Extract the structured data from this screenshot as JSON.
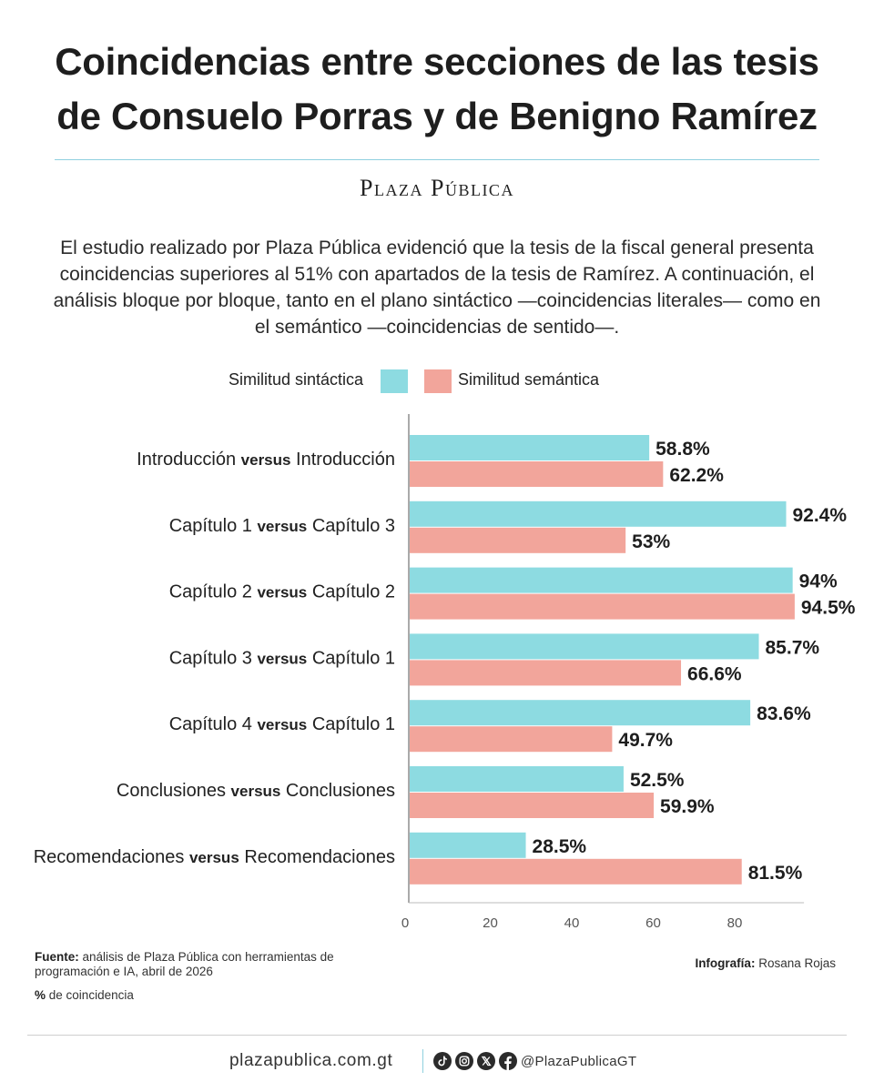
{
  "header": {
    "title_line1": "Coincidencias entre secciones de las tesis",
    "title_line2": "de Consuelo Porras y de Benigno Ramírez",
    "brand": "Plaza Pública"
  },
  "intro": "El estudio realizado por Plaza Pública evidenció que la tesis de la fiscal general presenta coincidencias superiores al 51% con apartados de la tesis de Ramírez. A continuación, el análisis bloque por bloque, tanto en el plano sintáctico —coincidencias literales— como en el semántico —coincidencias de sentido—.",
  "colors": {
    "syntactic": "#8ddbe1",
    "semantic": "#f2a59b",
    "rule": "#8fd0df"
  },
  "chart_data": {
    "type": "bar",
    "orientation": "horizontal",
    "title": "Coincidencias entre secciones de las tesis de Consuelo Porras y de Benigno Ramírez",
    "xlabel": "% de coincidencia",
    "xlim": [
      0,
      97
    ],
    "xticks": [
      0,
      20,
      40,
      60,
      80
    ],
    "legend_position": "top",
    "categories": [
      {
        "left": "Introducción",
        "versus": "versus",
        "right": "Introducción"
      },
      {
        "left": "Capítulo 1",
        "versus": "versus",
        "right": "Capítulo 3"
      },
      {
        "left": "Capítulo 2",
        "versus": "versus",
        "right": "Capítulo 2"
      },
      {
        "left": "Capítulo 3",
        "versus": "versus",
        "right": "Capítulo 1"
      },
      {
        "left": "Capítulo 4",
        "versus": "versus",
        "right": "Capítulo 1"
      },
      {
        "left": "Conclusiones",
        "versus": "versus",
        "right": "Conclusiones"
      },
      {
        "left": "Recomendaciones",
        "versus": "versus",
        "right": "Recomendaciones"
      }
    ],
    "series": [
      {
        "name": "Similitud sintáctica",
        "color": "#8ddbe1",
        "values": [
          58.8,
          92.4,
          94,
          85.7,
          83.6,
          52.5,
          28.5
        ],
        "labels": [
          "58.8%",
          "92.4%",
          "94%",
          "85.7%",
          "83.6%",
          "52.5%",
          "28.5%"
        ]
      },
      {
        "name": "Similitud semántica",
        "color": "#f2a59b",
        "values": [
          62.2,
          53,
          94.5,
          66.6,
          49.7,
          59.9,
          81.5
        ],
        "labels": [
          "62.2%",
          "53%",
          "94.5%",
          "66.6%",
          "49.7%",
          "59.9%",
          "81.5%"
        ]
      }
    ]
  },
  "footer": {
    "source_label": "Fuente:",
    "source_text": "análisis de Plaza Pública con herramientas de programación e IA, abril de 2026",
    "pct_label": "%",
    "pct_text": "de coincidencia",
    "credit_label": "Infografía:",
    "credit_text": "Rosana Rojas",
    "site": "plazapublica.com.gt",
    "social_icons": [
      "tiktok-icon",
      "instagram-icon",
      "x-icon",
      "facebook-icon"
    ],
    "handle": "@PlazaPublicaGT"
  }
}
